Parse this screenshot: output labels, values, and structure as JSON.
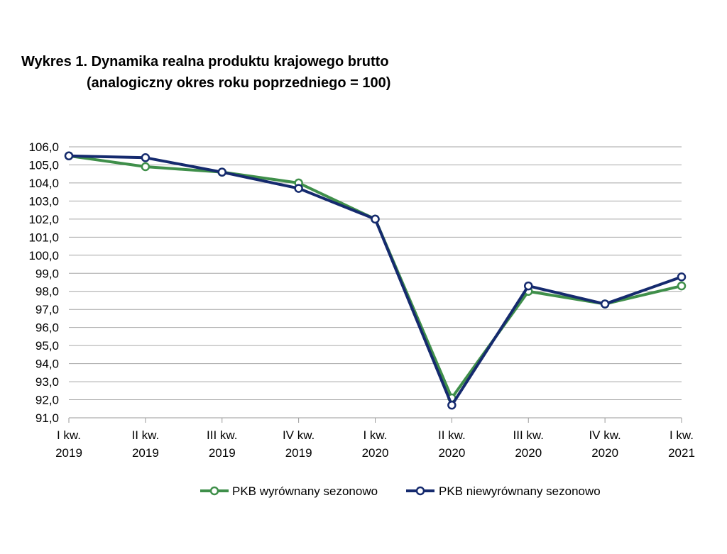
{
  "chart_data": {
    "type": "line",
    "title": "Wykres 1. Dynamika realna produktu krajowego brutto",
    "subtitle": "(analogiczny okres roku poprzedniego = 100)",
    "categories": [
      [
        "I kw.",
        "2019"
      ],
      [
        "II kw.",
        "2019"
      ],
      [
        "III kw.",
        "2019"
      ],
      [
        "IV kw.",
        "2019"
      ],
      [
        "I kw.",
        "2020"
      ],
      [
        "II kw.",
        "2020"
      ],
      [
        "III kw.",
        "2020"
      ],
      [
        "IV kw.",
        "2020"
      ],
      [
        "I kw.",
        "2021"
      ]
    ],
    "ylim": [
      91,
      106
    ],
    "ytick_step": 1,
    "ytick_labels": [
      "106,0",
      "105,0",
      "104,0",
      "103,0",
      "102,0",
      "101,0",
      "100,0",
      "99,0",
      "98,0",
      "97,0",
      "96,0",
      "95,0",
      "94,0",
      "93,0",
      "92,0",
      "91,0"
    ],
    "grid": true,
    "legend_position": "bottom",
    "series": [
      {
        "name": "PKB wyrównany sezonowo",
        "color": "#3f8f4a",
        "values": [
          105.5,
          104.9,
          104.6,
          104.0,
          102.0,
          92.1,
          98.0,
          97.3,
          98.3
        ]
      },
      {
        "name": "PKB niewyrównany sezonowo",
        "color": "#152a6e",
        "values": [
          105.5,
          105.4,
          104.6,
          103.7,
          102.0,
          91.7,
          98.3,
          97.3,
          98.8
        ]
      }
    ]
  }
}
